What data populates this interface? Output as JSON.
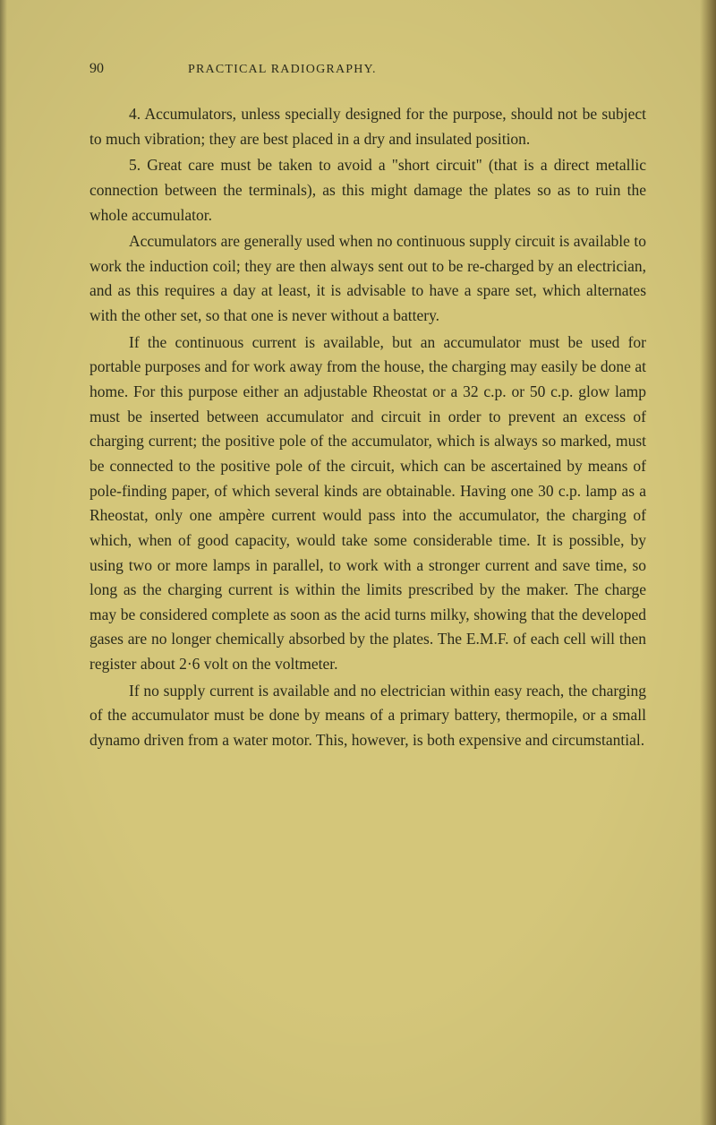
{
  "page": {
    "number": "90",
    "chapter_title": "PRACTICAL RADIOGRAPHY.",
    "background_color": "#d4c67a",
    "text_color": "#2a2a1a",
    "body_font_size_pt": 13,
    "line_height": 1.58,
    "paragraphs": [
      "4. Accumulators, unless specially designed for the purpose, should not be subject to much vibration; they are best placed in a dry and insulated position.",
      "5. Great care must be taken to avoid a \"short circuit\" (that is a direct metallic connection between the terminals), as this might damage the plates so as to ruin the whole accumulator.",
      "Accumulators are generally used when no continuous supply circuit is available to work the induction coil; they are then always sent out to be re-charged by an electrician, and as this requires a day at least, it is advisable to have a spare set, which alternates with the other set, so that one is never without a battery.",
      "If the continuous current is available, but an accumulator must be used for portable purposes and for work away from the house, the charging may easily be done at home. For this purpose either an adjustable Rheostat or a 32 c.p. or 50 c.p. glow lamp must be inserted between accumulator and circuit in order to prevent an excess of charging current; the positive pole of the accumulator, which is always so marked, must be connected to the positive pole of the circuit, which can be ascertained by means of pole-finding paper, of which several kinds are obtainable. Having one 30 c.p. lamp as a Rheostat, only one ampère current would pass into the accumulator, the charging of which, when of good capacity, would take some considerable time. It is possible, by using two or more lamps in parallel, to work with a stronger current and save time, so long as the charging current is within the limits prescribed by the maker. The charge may be considered complete as soon as the acid turns milky, showing that the developed gases are no longer chemically absorbed by the plates. The E.M.F. of each cell will then register about 2·6 volt on the voltmeter.",
      "If no supply current is available and no electrician within easy reach, the charging of the accumulator must be done by means of a primary battery, thermopile, or a small dynamo driven from a water motor. This, however, is both expensive and circumstantial."
    ]
  }
}
